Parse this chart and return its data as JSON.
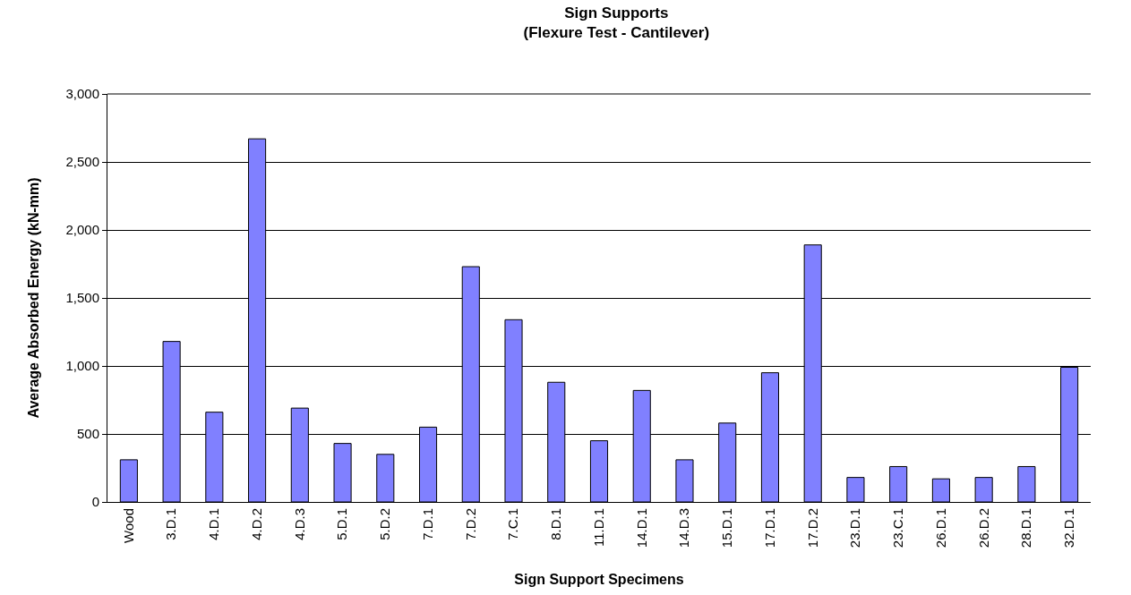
{
  "chart_data": {
    "type": "bar",
    "title": "Sign Supports\n(Flexure Test - Cantilever)",
    "xlabel": "Sign Support Specimens",
    "ylabel": "Average Absorbed Energy (kN-mm)",
    "categories": [
      "Wood",
      "3.D.1",
      "4.D.1",
      "4.D.2",
      "4.D.3",
      "5.D.1",
      "5.D.2",
      "7.D.1",
      "7.D.2",
      "7.C.1",
      "8.D.1",
      "11.D.1",
      "14.D.1",
      "14.D.3",
      "15.D.1",
      "17.D.1",
      "17.D.2",
      "23.D.1",
      "23.C.1",
      "26.D.1",
      "26.D.2",
      "28.D.1",
      "32.D.1"
    ],
    "values": [
      310,
      1180,
      660,
      2670,
      690,
      430,
      350,
      550,
      1730,
      1340,
      880,
      450,
      820,
      310,
      580,
      950,
      1890,
      180,
      260,
      170,
      180,
      260,
      990
    ],
    "color": "#8080ff",
    "ylim": [
      0,
      3000
    ],
    "yticks": [
      {
        "value": 0,
        "label": "0"
      },
      {
        "value": 500,
        "label": "500"
      },
      {
        "value": 1000,
        "label": "1,000"
      },
      {
        "value": 1500,
        "label": "1,500"
      },
      {
        "value": 2000,
        "label": "2,000"
      },
      {
        "value": 2500,
        "label": "2,500"
      },
      {
        "value": 3000,
        "label": "3,000"
      }
    ],
    "grid": "y"
  }
}
